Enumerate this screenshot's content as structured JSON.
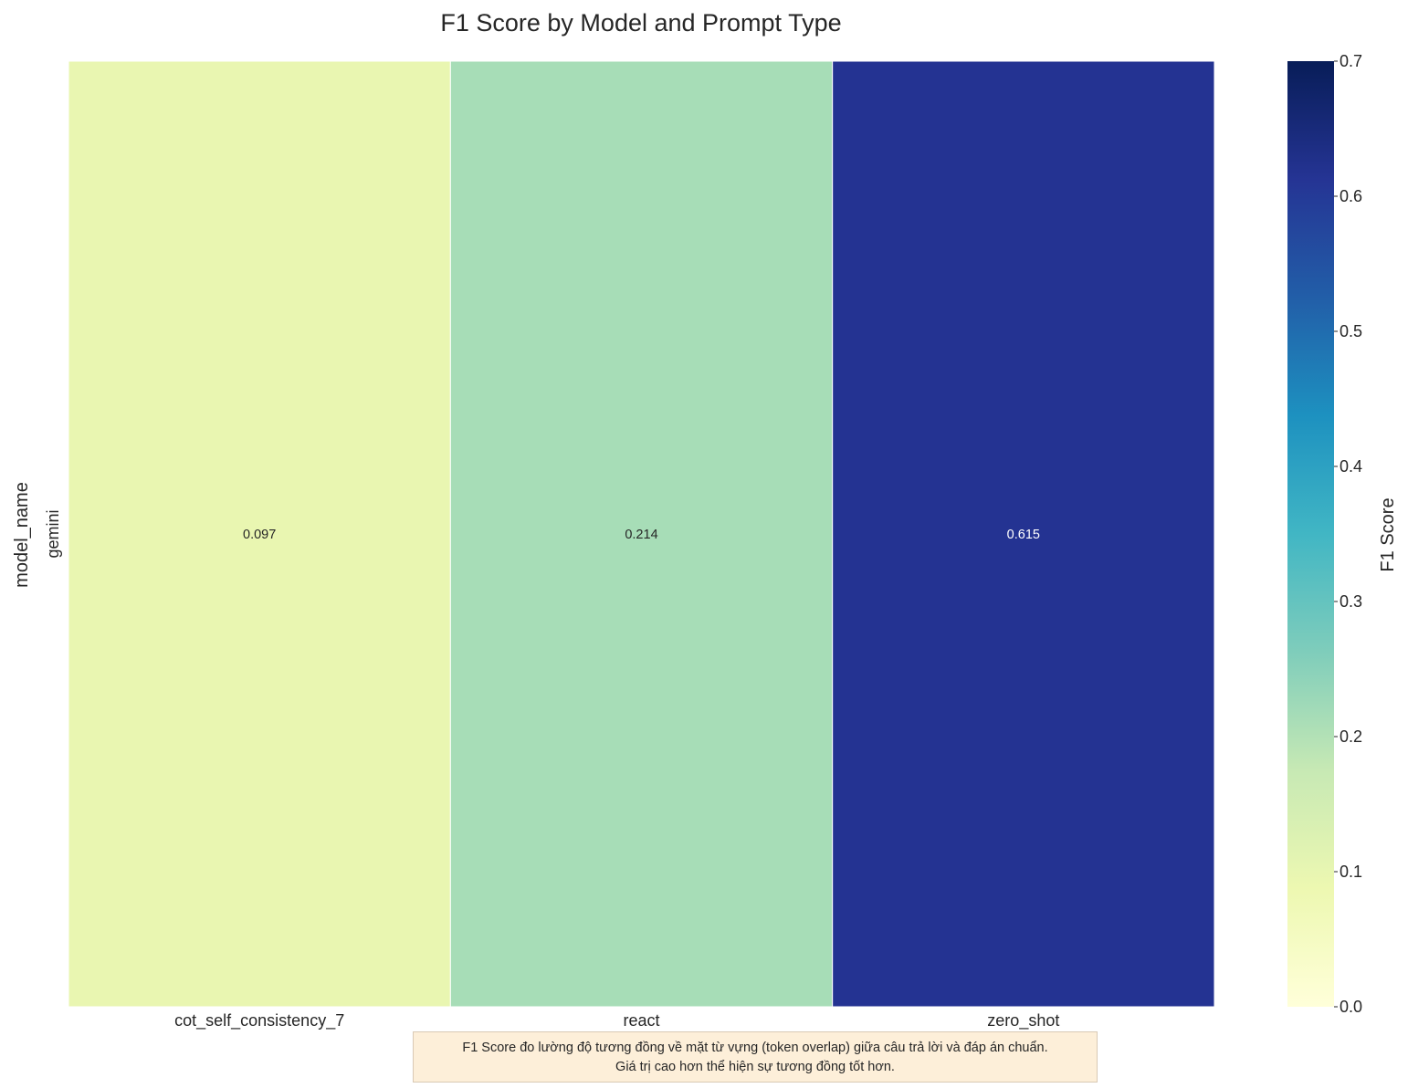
{
  "chart_data": {
    "type": "heatmap",
    "title": "F1 Score by Model and Prompt Type",
    "xlabel": "prompt_type",
    "ylabel": "model_name",
    "x": [
      "cot_self_consistency_7",
      "react",
      "zero_shot"
    ],
    "y": [
      "gemini"
    ],
    "values": [
      [
        0.097,
        0.214,
        0.615
      ]
    ],
    "value_labels": [
      [
        "0.097",
        "0.214",
        "0.615"
      ]
    ],
    "colorbar": {
      "label": "F1 Score",
      "range": [
        0,
        0.7
      ],
      "ticks": [
        "0.0",
        "0.1",
        "0.2",
        "0.3",
        "0.4",
        "0.5",
        "0.6",
        "0.7"
      ],
      "colormap": "YlGnBu"
    }
  },
  "note": {
    "line1": "F1 Score đo lường độ tương đồng về mặt từ vựng (token overlap) giữa câu trả lời và đáp án chuẩn.",
    "line2": "Giá trị cao hơn thể hiện sự tương đồng tốt hơn."
  }
}
